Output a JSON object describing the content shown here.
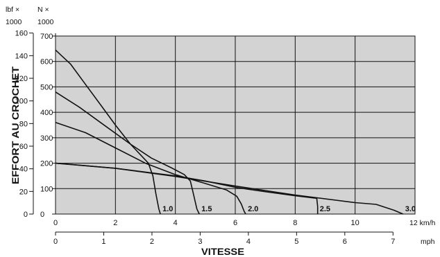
{
  "chart_data": {
    "type": "line",
    "xlabel": "VITESSE",
    "ylabel": "EFFORT AU CROCHET",
    "x_units": {
      "kmh": "12 km/h",
      "mph": "mph"
    },
    "y_units": {
      "lbf": [
        "lbf ×",
        "1000"
      ],
      "n": [
        "N ×",
        "1000"
      ]
    },
    "x_ticks_kmh": [
      "0",
      "2",
      "4",
      "6",
      "8",
      "10",
      "12"
    ],
    "x_ticks_mph": [
      "0",
      "1",
      "2",
      "3",
      "4",
      "5",
      "6",
      "7"
    ],
    "y_ticks_lbf": [
      "0",
      "20",
      "40",
      "60",
      "80",
      "100",
      "120",
      "140",
      "160"
    ],
    "y_ticks_n": [
      "0",
      "100",
      "200",
      "300",
      "400",
      "500",
      "600",
      "700"
    ],
    "xlim_kmh": [
      0,
      12
    ],
    "ylim_n": [
      0,
      700
    ],
    "grid": true,
    "colors": {
      "plot_background": "#d3d3d3",
      "line": "#111111",
      "grid": "#111111"
    },
    "series": [
      {
        "name": "1.0",
        "x": [
          0,
          0.5,
          1.0,
          1.5,
          2.0,
          2.5,
          3.1,
          3.25,
          3.35,
          3.45,
          3.5
        ],
        "y": [
          645,
          590,
          510,
          430,
          350,
          275,
          200,
          150,
          80,
          20,
          0
        ]
      },
      {
        "name": "1.5",
        "x": [
          0,
          0.8,
          1.5,
          2.5,
          3.2,
          3.9,
          4.3,
          4.5,
          4.6,
          4.72,
          4.8
        ],
        "y": [
          480,
          420,
          360,
          275,
          220,
          180,
          155,
          130,
          80,
          20,
          0
        ]
      },
      {
        "name": "2.0",
        "x": [
          0,
          1.0,
          2.0,
          3.0,
          4.0,
          5.0,
          5.7,
          6.05,
          6.2,
          6.3,
          6.35
        ],
        "y": [
          360,
          320,
          260,
          200,
          155,
          120,
          95,
          70,
          40,
          10,
          0
        ]
      },
      {
        "name": "2.5",
        "x": [
          0,
          1.0,
          2.0,
          3.0,
          4.0,
          5.0,
          6.0,
          7.0,
          8.0,
          8.65,
          8.72,
          8.75,
          8.75
        ],
        "y": [
          200,
          190,
          180,
          165,
          150,
          130,
          105,
          88,
          72,
          63,
          62,
          30,
          0
        ]
      },
      {
        "name": "3.0",
        "x": [
          0,
          2.0,
          4.0,
          6.0,
          8.0,
          10.0,
          10.7,
          11.3,
          11.6
        ],
        "y": [
          200,
          180,
          148,
          110,
          75,
          45,
          38,
          15,
          0
        ]
      }
    ]
  }
}
